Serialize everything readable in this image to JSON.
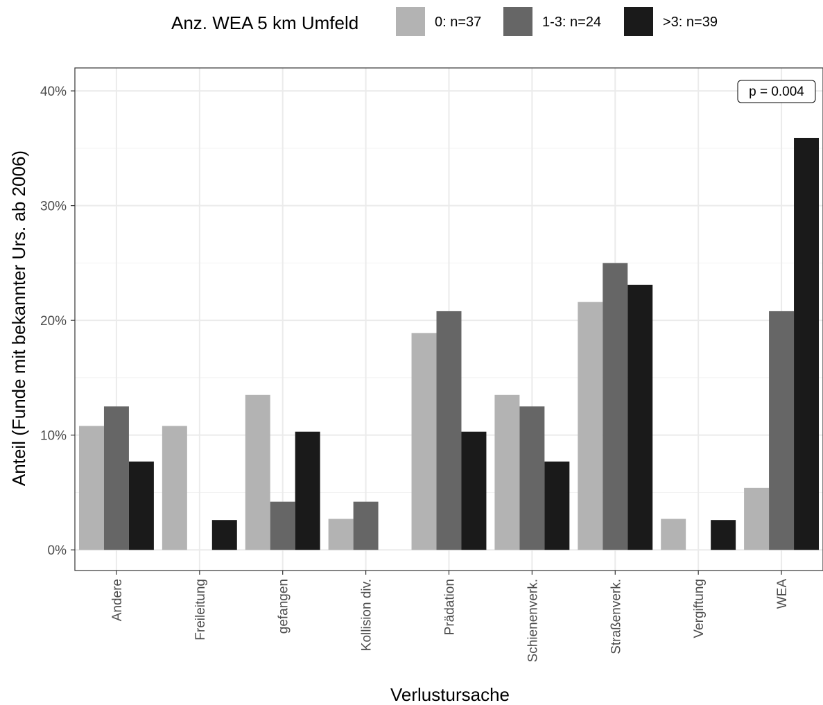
{
  "chart_data": {
    "type": "bar",
    "title": "",
    "xlabel": "Verlustursache",
    "ylabel": "Anteil (Funde mit bekannter Urs. ab 2006)",
    "legend_title": "Anz. WEA 5 km Umfeld",
    "legend_position": "top",
    "grid": true,
    "ylim": [
      -0.018,
      0.42
    ],
    "yticks": [
      0,
      0.1,
      0.2,
      0.3,
      0.4
    ],
    "ytick_labels": [
      "0%",
      "10%",
      "20%",
      "30%",
      "40%"
    ],
    "categories": [
      "Andere",
      "Freileitung",
      "gefangen",
      "Kollision div.",
      "Prädation",
      "Schienenverk.",
      "Straßenverk.",
      "Vergiftung",
      "WEA"
    ],
    "series": [
      {
        "name": "0: n=37",
        "color": "#b3b3b3",
        "values": [
          0.108,
          0.108,
          0.135,
          0.027,
          0.189,
          0.135,
          0.216,
          0.027,
          0.054
        ]
      },
      {
        "name": "1-3: n=24",
        "color": "#666666",
        "values": [
          0.125,
          0,
          0.042,
          0.042,
          0.208,
          0.125,
          0.25,
          0,
          0.208
        ]
      },
      {
        "name": ">3: n=39",
        "color": "#1a1a1a",
        "values": [
          0.077,
          0.026,
          0.103,
          0,
          0.103,
          0.077,
          0.231,
          0.026,
          0.359
        ]
      }
    ],
    "annotation": "p = 0.004"
  }
}
